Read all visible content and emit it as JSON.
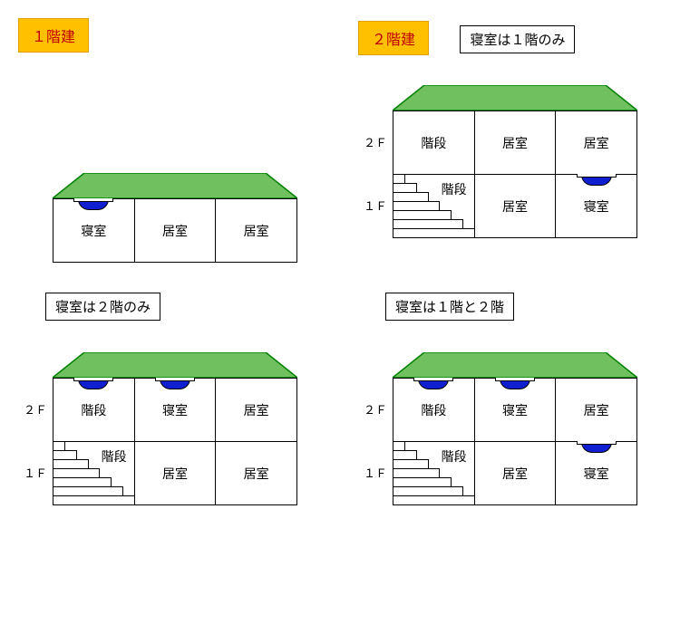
{
  "colors": {
    "badge_bg": "#ffc000",
    "badge_border": "#e0a000",
    "badge_text": "#c00000",
    "roof_fill": "#70c060",
    "roof_stroke": "#008000",
    "alarm_fill": "#1020d0",
    "line": "#000000"
  },
  "dimensions": {
    "room_width": 90,
    "room_height": 70,
    "roof_height": 28,
    "roof_inset": 35,
    "house_width": 270,
    "stair_steps": 7
  },
  "badges": {
    "one_story": "１階建",
    "two_story": "２階建"
  },
  "case_labels": {
    "c1f": "寝室は１階のみ",
    "c2f": "寝室は２階のみ",
    "c12": "寝室は１階と２階"
  },
  "floor_labels": {
    "f1": "１Ｆ",
    "f2": "２Ｆ"
  },
  "rooms": {
    "bedroom": "寝室",
    "living": "居室",
    "stair": "階段"
  },
  "houses": {
    "one_story": {
      "floors": [
        {
          "label": null,
          "rooms": [
            {
              "text_key": "bedroom",
              "alarm": true
            },
            {
              "text_key": "living"
            },
            {
              "text_key": "living"
            }
          ]
        }
      ]
    },
    "two_c1f": {
      "floors": [
        {
          "label": "f2",
          "rooms": [
            {
              "text_key": "stair"
            },
            {
              "text_key": "living"
            },
            {
              "text_key": "living"
            }
          ]
        },
        {
          "label": "f1",
          "rooms": [
            {
              "text_key": "stair",
              "stairs": true
            },
            {
              "text_key": "living"
            },
            {
              "text_key": "bedroom",
              "alarm": true
            }
          ]
        }
      ]
    },
    "two_c2f": {
      "floors": [
        {
          "label": "f2",
          "rooms": [
            {
              "text_key": "stair",
              "alarm": true
            },
            {
              "text_key": "bedroom",
              "alarm": true
            },
            {
              "text_key": "living"
            }
          ]
        },
        {
          "label": "f1",
          "rooms": [
            {
              "text_key": "stair",
              "stairs": true
            },
            {
              "text_key": "living"
            },
            {
              "text_key": "living"
            }
          ]
        }
      ]
    },
    "two_c12": {
      "floors": [
        {
          "label": "f2",
          "rooms": [
            {
              "text_key": "stair",
              "alarm": true
            },
            {
              "text_key": "bedroom",
              "alarm": true
            },
            {
              "text_key": "living"
            }
          ]
        },
        {
          "label": "f1",
          "rooms": [
            {
              "text_key": "stair",
              "stairs": true
            },
            {
              "text_key": "living"
            },
            {
              "text_key": "bedroom",
              "alarm": true
            }
          ]
        }
      ]
    }
  }
}
